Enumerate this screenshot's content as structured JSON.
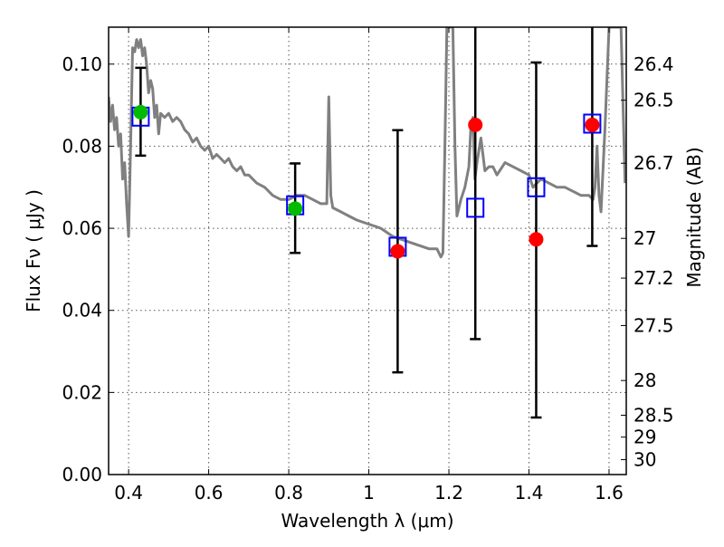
{
  "chart_data": {
    "type": "scatter",
    "title": "",
    "xlabel": "Wavelength  λ (μm)",
    "ylabel": "Flux  Fν  ( μJy )",
    "ylabel_right": "Magnitude (AB)",
    "xlim": [
      0.35,
      1.643
    ],
    "ylim": [
      0.0,
      0.109
    ],
    "grid": true,
    "x_ticks": [
      0.4,
      0.6,
      0.8,
      1.0,
      1.2,
      1.4,
      1.6
    ],
    "x_tick_labels": [
      "0.4",
      "0.6",
      "0.8",
      "1",
      "1.2",
      "1.4",
      "1.6"
    ],
    "y_ticks": [
      0.0,
      0.02,
      0.04,
      0.06,
      0.08,
      0.1
    ],
    "y_tick_labels": [
      "0.00",
      "0.02",
      "0.04",
      "0.06",
      "0.08",
      "0.10"
    ],
    "right_ticks": [
      26.4,
      26.5,
      26.7,
      27,
      27.2,
      27.5,
      28,
      28.5,
      29,
      30
    ],
    "right_tick_labels": [
      "26.4",
      "26.5",
      "26.7",
      "27",
      "27.2",
      "27.5",
      "28",
      "28.5",
      "29",
      "30"
    ],
    "magnitude_zero_point": 23.9,
    "colors": {
      "spectrum": "#808080",
      "model": "#0000ff",
      "detection": "#00bb00",
      "low_sn": "#ff0000",
      "errorbar": "#000000",
      "grid": "#555555"
    },
    "series": [
      {
        "name": "model spectrum",
        "kind": "line",
        "x": [
          0.35,
          0.355,
          0.36,
          0.365,
          0.37,
          0.375,
          0.38,
          0.385,
          0.39,
          0.395,
          0.4,
          0.405,
          0.41,
          0.415,
          0.42,
          0.425,
          0.43,
          0.435,
          0.44,
          0.445,
          0.45,
          0.455,
          0.46,
          0.465,
          0.47,
          0.475,
          0.48,
          0.49,
          0.5,
          0.51,
          0.52,
          0.53,
          0.54,
          0.55,
          0.56,
          0.57,
          0.58,
          0.59,
          0.6,
          0.61,
          0.62,
          0.63,
          0.64,
          0.65,
          0.66,
          0.67,
          0.68,
          0.69,
          0.7,
          0.72,
          0.74,
          0.76,
          0.78,
          0.8,
          0.82,
          0.84,
          0.86,
          0.88,
          0.895,
          0.9,
          0.905,
          0.91,
          0.93,
          0.95,
          0.97,
          1.0,
          1.03,
          1.06,
          1.09,
          1.12,
          1.15,
          1.17,
          1.18,
          1.185,
          1.19,
          1.195,
          1.2,
          1.205,
          1.21,
          1.215,
          1.22,
          1.23,
          1.24,
          1.25,
          1.255,
          1.26,
          1.265,
          1.27,
          1.28,
          1.29,
          1.3,
          1.31,
          1.32,
          1.34,
          1.36,
          1.38,
          1.4,
          1.41,
          1.42,
          1.43,
          1.45,
          1.47,
          1.49,
          1.51,
          1.53,
          1.55,
          1.56,
          1.565,
          1.57,
          1.575,
          1.58,
          1.59,
          1.6,
          1.605,
          1.61,
          1.62,
          1.63,
          1.64
        ],
        "y": [
          0.092,
          0.086,
          0.09,
          0.084,
          0.087,
          0.08,
          0.083,
          0.072,
          0.076,
          0.066,
          0.058,
          0.08,
          0.104,
          0.103,
          0.106,
          0.104,
          0.106,
          0.102,
          0.104,
          0.1,
          0.093,
          0.096,
          0.094,
          0.087,
          0.09,
          0.083,
          0.088,
          0.087,
          0.088,
          0.086,
          0.087,
          0.086,
          0.084,
          0.083,
          0.081,
          0.082,
          0.08,
          0.079,
          0.08,
          0.077,
          0.078,
          0.077,
          0.076,
          0.077,
          0.075,
          0.074,
          0.075,
          0.073,
          0.073,
          0.071,
          0.07,
          0.068,
          0.067,
          0.067,
          0.068,
          0.068,
          0.067,
          0.066,
          0.066,
          0.092,
          0.068,
          0.065,
          0.064,
          0.063,
          0.062,
          0.061,
          0.06,
          0.058,
          0.057,
          0.056,
          0.055,
          0.055,
          0.053,
          0.054,
          0.08,
          0.109,
          0.109,
          0.109,
          0.109,
          0.08,
          0.063,
          0.067,
          0.07,
          0.075,
          0.085,
          0.087,
          0.072,
          0.076,
          0.082,
          0.074,
          0.075,
          0.075,
          0.073,
          0.076,
          0.075,
          0.074,
          0.073,
          0.07,
          0.071,
          0.072,
          0.071,
          0.07,
          0.07,
          0.069,
          0.068,
          0.068,
          0.067,
          0.07,
          0.08,
          0.068,
          0.064,
          0.085,
          0.109,
          0.109,
          0.109,
          0.109,
          0.109,
          0.071
        ]
      },
      {
        "name": "model photometry",
        "kind": "square-marker",
        "x": [
          0.43,
          0.816,
          1.072,
          1.266,
          1.418,
          1.558
        ],
        "y": [
          0.0872,
          0.0656,
          0.0555,
          0.065,
          0.07,
          0.0855
        ]
      },
      {
        "name": "observed photometry",
        "kind": "circle-marker",
        "x": [
          0.43,
          0.816,
          1.072,
          1.266,
          1.418,
          1.558
        ],
        "y": [
          0.0883,
          0.0648,
          0.0544,
          0.0852,
          0.0573,
          0.0852
        ],
        "marker_color": [
          "detection",
          "detection",
          "low_sn",
          "low_sn",
          "low_sn",
          "low_sn"
        ],
        "err_low": [
          0.0777,
          0.054,
          0.0249,
          0.033,
          0.0139,
          0.0557
        ],
        "err_high": [
          0.0991,
          0.0758,
          0.0839,
          0.115,
          0.1004,
          0.115
        ]
      }
    ]
  }
}
